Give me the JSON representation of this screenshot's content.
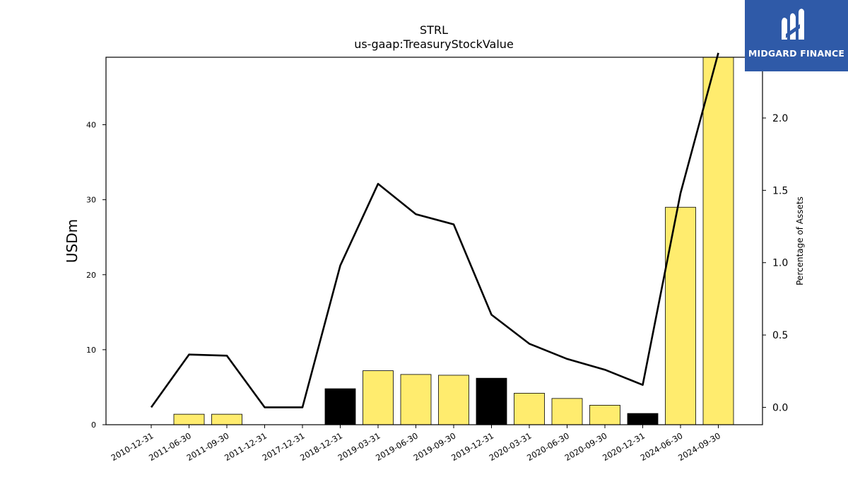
{
  "chart_data": {
    "type": "bar",
    "title": "STRL",
    "subtitle": "us-gaap:TreasuryStockValue",
    "ylabel": "USDm",
    "y2label": "Percentage of Assets",
    "categories": [
      "2010-12-31",
      "2011-06-30",
      "2011-09-30",
      "2011-12-31",
      "2017-12-31",
      "2018-12-31",
      "2019-03-31",
      "2019-06-30",
      "2019-09-30",
      "2019-12-31",
      "2020-03-31",
      "2020-06-30",
      "2020-09-30",
      "2020-12-31",
      "2024-06-30",
      "2024-09-30"
    ],
    "series": [
      {
        "type": "bar",
        "axis": "left",
        "values": [
          0,
          1.4,
          1.4,
          0,
          0,
          4.8,
          7.2,
          6.7,
          6.6,
          6.2,
          4.2,
          3.5,
          2.6,
          1.5,
          29.0,
          49.0
        ],
        "colors": [
          "#ffec6e",
          "#ffec6e",
          "#ffec6e",
          "#ffec6e",
          "#ffec6e",
          "#000000",
          "#ffec6e",
          "#ffec6e",
          "#ffec6e",
          "#000000",
          "#ffec6e",
          "#ffec6e",
          "#ffec6e",
          "#000000",
          "#ffec6e",
          "#ffec6e"
        ]
      },
      {
        "type": "line",
        "axis": "right",
        "color": "#000000",
        "values": [
          0.0,
          0.365,
          0.357,
          0.0,
          0.0,
          0.98,
          1.545,
          1.335,
          1.265,
          0.64,
          0.44,
          0.335,
          0.26,
          0.155,
          1.48,
          2.45
        ]
      }
    ],
    "ylim": [
      0,
      49
    ],
    "y_ticks": [
      0,
      10,
      20,
      30,
      40
    ],
    "y2lim": [
      -0.12,
      2.42
    ],
    "y2_ticks": [
      "0.0",
      "0.5",
      "1.0",
      "1.5",
      "2.0"
    ],
    "grid": false,
    "legend": "none"
  },
  "logo": {
    "text": "MIDGARD FINANCE",
    "bg": "#2f5aa8"
  }
}
